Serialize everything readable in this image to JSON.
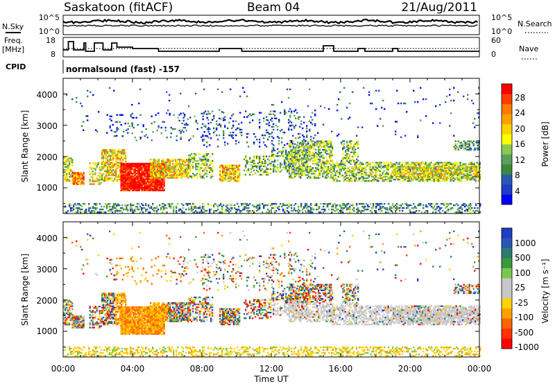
{
  "header": {
    "station": "Saskatoon (fitACF)",
    "beam": "Beam 04",
    "date": "21/Aug/2011"
  },
  "summary": {
    "nsky_label": "N.Sky",
    "nsky_ticks": [
      "10^5",
      "10^0"
    ],
    "nsearch_label": "N.Search",
    "nsearch_ticks": [
      "10^5",
      "10^0"
    ],
    "freq_label": "Freq.",
    "freq_unit": "[MHz]",
    "freq_ticks": [
      "18",
      "8"
    ],
    "nave_label": "Nave",
    "nave_ticks": [
      "60",
      "0"
    ],
    "cpid_label": "CPID",
    "cpid_text": "normalsound (fast) -157"
  },
  "colors": {
    "power": [
      "#0000ff",
      "#1e3cc8",
      "#2a5ab0",
      "#3b8a3b",
      "#5aa05a",
      "#8cc850",
      "#ffff00",
      "#ffd200",
      "#ffa000",
      "#ff7800",
      "#ff3c00",
      "#ff0000"
    ],
    "velocity": [
      "#1e3cc8",
      "#2a55b4",
      "#2f7a6e",
      "#3a9a3a",
      "#78c850",
      "#c8c8c8",
      "#c8c8c8",
      "#ffd200",
      "#ffa000",
      "#ff6400",
      "#ff3200",
      "#ff0000"
    ]
  },
  "chart_data": [
    {
      "type": "heatmap",
      "panel": "power",
      "ylabel": "Slant Range [km]",
      "ylim": [
        180,
        4500
      ],
      "yticks": [
        "1000",
        "2000",
        "3000",
        "4000"
      ],
      "xlim": [
        0,
        24
      ],
      "colorbar_label": "Power [dB]",
      "colorbar_range": [
        0,
        30
      ],
      "colorbar_ticks": [
        "4",
        "8",
        "12",
        "16",
        "20",
        "24",
        "28"
      ]
    },
    {
      "type": "heatmap",
      "panel": "velocity",
      "ylabel": "Slant Range [km]",
      "ylim": [
        180,
        4500
      ],
      "yticks": [
        "1000",
        "2000",
        "3000",
        "4000"
      ],
      "xlim": [
        0,
        24
      ],
      "colorbar_label": "Velocity [m s⁻¹]",
      "colorbar_range": [
        -1200,
        1200
      ],
      "colorbar_ticks": [
        "1000",
        "500",
        "100",
        "25",
        "-25",
        "-100",
        "-500",
        "-1000"
      ]
    }
  ],
  "xaxis": {
    "label": "Time UT",
    "ticks": [
      "00:00",
      "04:00",
      "08:00",
      "12:00",
      "16:00",
      "20:00",
      "00:00"
    ]
  }
}
